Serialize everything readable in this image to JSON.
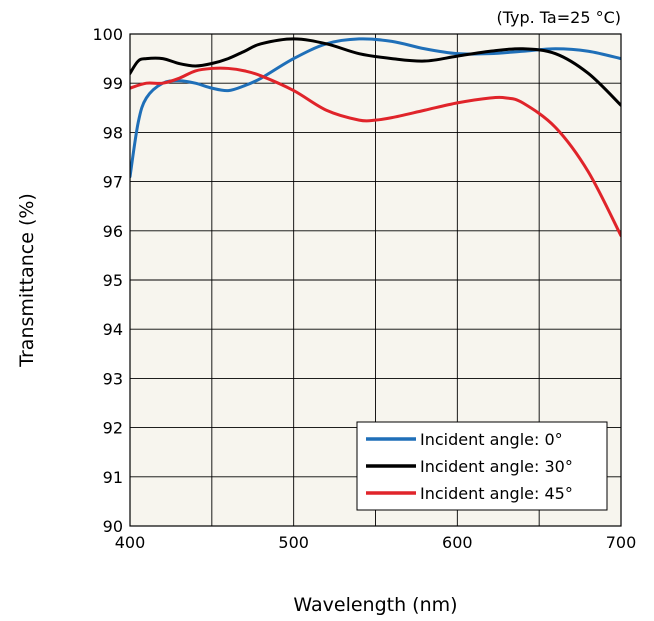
{
  "chart_data": {
    "type": "line",
    "note": "(Typ. Ta=25 °C)",
    "xlabel": "Wavelength (nm)",
    "ylabel": "Transmittance (%)",
    "xlim": [
      400,
      700
    ],
    "ylim": [
      90,
      100
    ],
    "xticks": [
      "400",
      "500",
      "600",
      "700"
    ],
    "yticks": [
      "90",
      "91",
      "92",
      "93",
      "94",
      "95",
      "96",
      "97",
      "98",
      "99",
      "100"
    ],
    "grid": true,
    "plot_background": "#f7f5ee",
    "legend_position": "bottom-right",
    "series": [
      {
        "name": "Incident angle: 0°",
        "color": "#1f6fb8",
        "x": [
          400,
          405,
          410,
          420,
          430,
          440,
          450,
          460,
          470,
          480,
          500,
          520,
          540,
          560,
          580,
          600,
          620,
          640,
          660,
          680,
          700
        ],
        "y": [
          97.1,
          98.2,
          98.7,
          99.0,
          99.05,
          99.0,
          98.9,
          98.85,
          98.95,
          99.1,
          99.5,
          99.8,
          99.9,
          99.85,
          99.7,
          99.6,
          99.6,
          99.65,
          99.7,
          99.65,
          99.5
        ]
      },
      {
        "name": "Incident angle: 30°",
        "color": "#000000",
        "x": [
          400,
          405,
          410,
          420,
          430,
          440,
          450,
          460,
          470,
          480,
          500,
          520,
          540,
          560,
          580,
          600,
          620,
          640,
          660,
          680,
          700
        ],
        "y": [
          99.2,
          99.45,
          99.5,
          99.5,
          99.4,
          99.35,
          99.4,
          99.5,
          99.65,
          99.8,
          99.9,
          99.8,
          99.6,
          99.5,
          99.45,
          99.55,
          99.65,
          99.7,
          99.6,
          99.2,
          98.55
        ]
      },
      {
        "name": "Incident angle: 45°",
        "color": "#e0242a",
        "x": [
          400,
          410,
          420,
          430,
          440,
          450,
          460,
          470,
          480,
          500,
          520,
          540,
          550,
          560,
          580,
          600,
          620,
          630,
          640,
          660,
          680,
          700
        ],
        "y": [
          98.9,
          99.0,
          99.0,
          99.1,
          99.25,
          99.3,
          99.3,
          99.25,
          99.15,
          98.85,
          98.45,
          98.25,
          98.25,
          98.3,
          98.45,
          98.6,
          98.7,
          98.7,
          98.6,
          98.1,
          97.2,
          95.9
        ]
      }
    ]
  }
}
